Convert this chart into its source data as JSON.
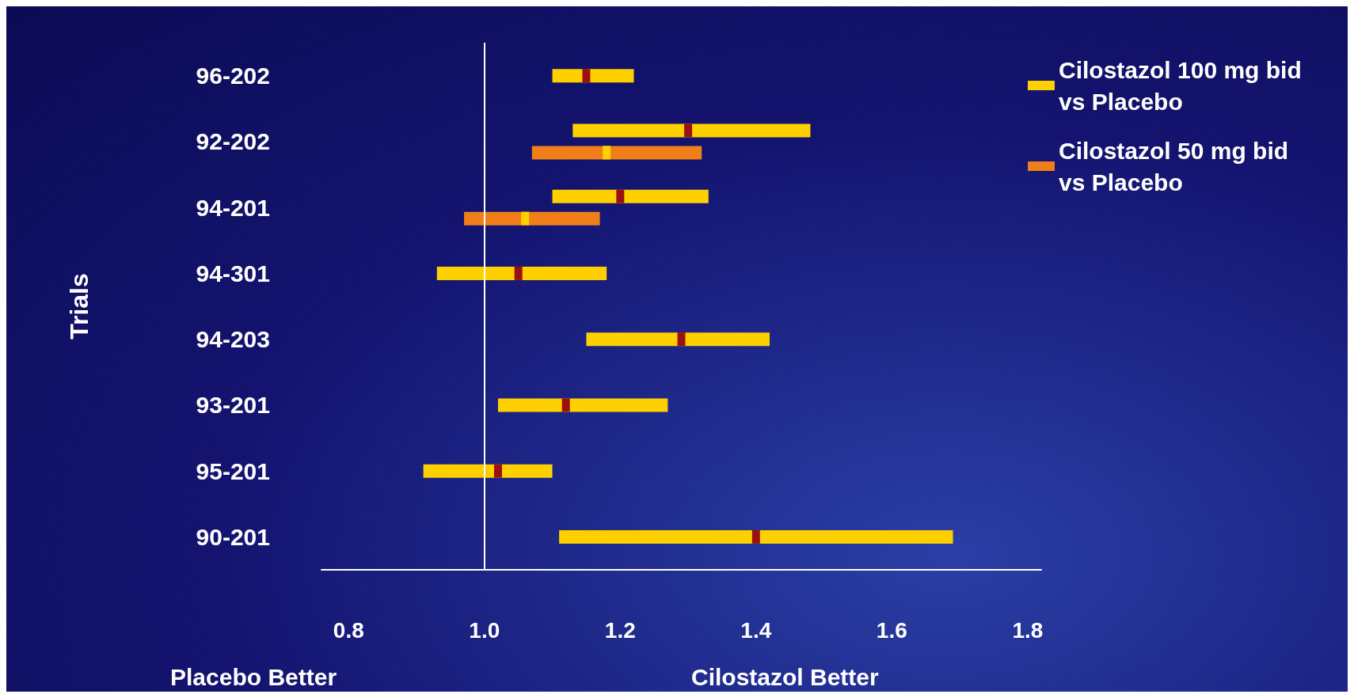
{
  "chart_data": {
    "type": "bar",
    "orientation": "horizontal",
    "ylabel": "Trials",
    "annotations": [
      "Placebo Better",
      "Cilostazol Better"
    ],
    "categories": [
      "96-202",
      "92-202",
      "94-201",
      "94-301",
      "94-203",
      "93-201",
      "95-201",
      "90-201"
    ],
    "xlim": [
      0.76,
      1.82
    ],
    "xticks": [
      0.8,
      {
        "value": 1,
        "label": "1.0"
      },
      1.2,
      1.4,
      1.6,
      1.8
    ],
    "grid": false,
    "legend": "top right",
    "marker": "square",
    "ref_lines": [
      {
        "axis": "x",
        "value": 1,
        "color": "#ffffff"
      }
    ],
    "series": [
      {
        "name": "Cilostazol 100 mg bid vs Placebo",
        "color": "#ffd000",
        "base": [
          1.1,
          1.13,
          1.1,
          0.93,
          1.15,
          1.02,
          0.91,
          1.11
        ],
        "values": [
          0.12,
          0.35,
          0.23,
          0.25,
          0.27,
          0.25,
          0.19,
          0.58
        ]
      },
      {
        "name": "Cilostazol 50 mg bid vs Placebo",
        "color": "#f07f1a",
        "base": [
          null,
          1.07,
          0.97,
          null,
          null,
          null,
          null,
          null
        ],
        "values": [
          null,
          0.25,
          0.2,
          null,
          null,
          null,
          null,
          null
        ]
      },
      {
        "type": "scatter",
        "color": "#9b1010",
        "values": [
          1.15,
          1.3,
          1.2,
          1.05,
          1.29,
          1.12,
          1.02,
          1.4
        ]
      },
      {
        "type": "scatter",
        "color": "#ffd000",
        "values": [
          null,
          1.18,
          1.06,
          null,
          null,
          null,
          null,
          null
        ]
      }
    ]
  }
}
